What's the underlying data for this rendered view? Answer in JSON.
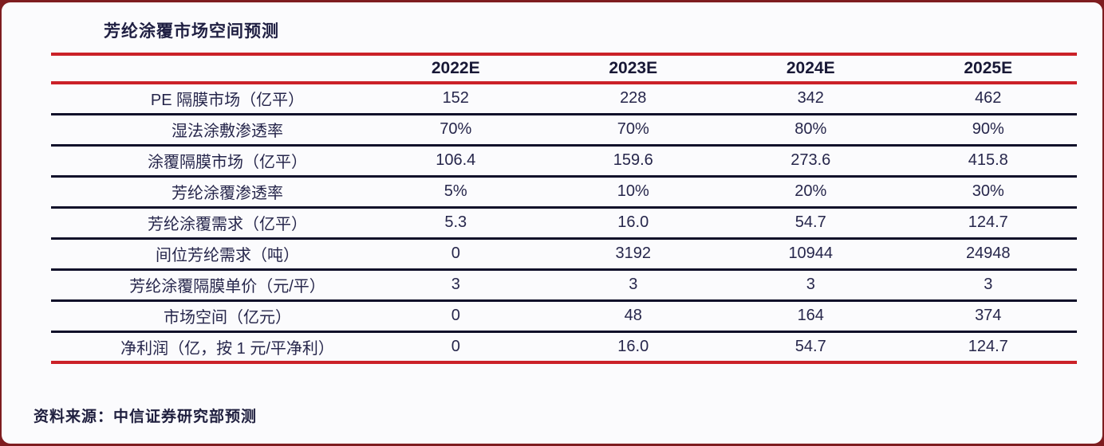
{
  "title": "芳纶涂覆市场空间预测",
  "source_note": "资料来源：中信证券研究部预测",
  "colors": {
    "outer_background": "#7e1d20",
    "card_background": "#fbfbfd",
    "accent_red_rule": "#cb2128",
    "row_divider_navy": "#10102a",
    "text_navy": "#26264b"
  },
  "table": {
    "corner_label": "",
    "column_headers": [
      "2022E",
      "2023E",
      "2024E",
      "2025E"
    ],
    "rows": [
      {
        "label": "PE 隔膜市场（亿平）",
        "values": [
          "152",
          "228",
          "342",
          "462"
        ]
      },
      {
        "label": "湿法涂敷渗透率",
        "values": [
          "70%",
          "70%",
          "80%",
          "90%"
        ]
      },
      {
        "label": "涂覆隔膜市场（亿平）",
        "values": [
          "106.4",
          "159.6",
          "273.6",
          "415.8"
        ]
      },
      {
        "label": "芳纶涂覆渗透率",
        "values": [
          "5%",
          "10%",
          "20%",
          "30%"
        ]
      },
      {
        "label": "芳纶涂覆需求（亿平）",
        "values": [
          "5.3",
          "16.0",
          "54.7",
          "124.7"
        ]
      },
      {
        "label": "间位芳纶需求（吨）",
        "values": [
          "0",
          "3192",
          "10944",
          "24948"
        ]
      },
      {
        "label": "芳纶涂覆隔膜单价（元/平）",
        "values": [
          "3",
          "3",
          "3",
          "3"
        ]
      },
      {
        "label": "市场空间（亿元）",
        "values": [
          "0",
          "48",
          "164",
          "374"
        ]
      },
      {
        "label": "净利润（亿，按 1 元/平净利）",
        "values": [
          "0",
          "16.0",
          "54.7",
          "124.7"
        ]
      }
    ]
  },
  "chart_data": {
    "type": "table",
    "title": "芳纶涂覆市场空间预测",
    "categories": [
      "2022E",
      "2023E",
      "2024E",
      "2025E"
    ],
    "series": [
      {
        "name": "PE 隔膜市场（亿平）",
        "values": [
          152,
          228,
          342,
          462
        ]
      },
      {
        "name": "湿法涂敷渗透率",
        "values": [
          "70%",
          "70%",
          "80%",
          "90%"
        ]
      },
      {
        "name": "涂覆隔膜市场（亿平）",
        "values": [
          106.4,
          159.6,
          273.6,
          415.8
        ]
      },
      {
        "name": "芳纶涂覆渗透率",
        "values": [
          "5%",
          "10%",
          "20%",
          "30%"
        ]
      },
      {
        "name": "芳纶涂覆需求（亿平）",
        "values": [
          5.3,
          16.0,
          54.7,
          124.7
        ]
      },
      {
        "name": "间位芳纶需求（吨）",
        "values": [
          0,
          3192,
          10944,
          24948
        ]
      },
      {
        "name": "芳纶涂覆隔膜单价（元/平）",
        "values": [
          3,
          3,
          3,
          3
        ]
      },
      {
        "name": "市场空间（亿元）",
        "values": [
          0,
          48,
          164,
          374
        ]
      },
      {
        "name": "净利润（亿，按 1 元/平净利）",
        "values": [
          0,
          16.0,
          54.7,
          124.7
        ]
      }
    ],
    "source": "资料来源：中信证券研究部预测"
  }
}
